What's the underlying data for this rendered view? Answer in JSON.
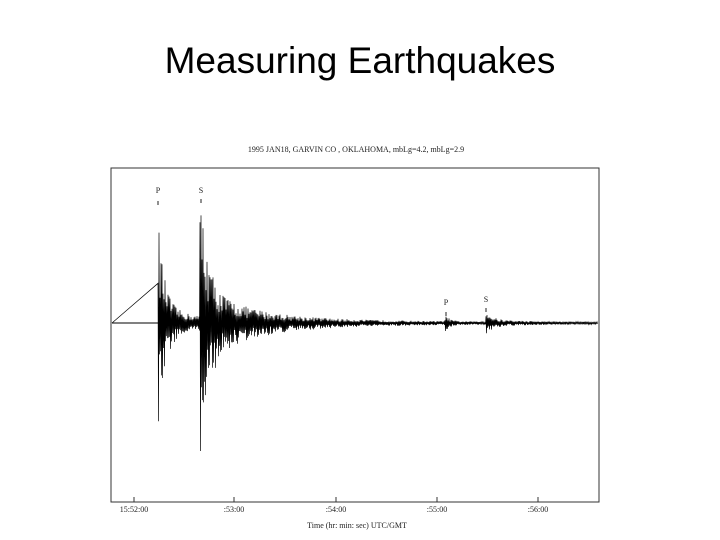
{
  "slide": {
    "title": "Measuring Earthquakes"
  },
  "figure": {
    "caption": "1995 JAN18, GARVIN CO , OKLAHOMA, mbLg=4.2, mbLg=2.9",
    "phases": [
      "P",
      "S",
      "P",
      "S"
    ],
    "x_tick_labels": [
      "15:52:00",
      ":53:00",
      ":54:00",
      ":55:00",
      ":56:00"
    ],
    "x_axis_label": "Time (hr: min: sec)  UTC/GMT"
  }
}
